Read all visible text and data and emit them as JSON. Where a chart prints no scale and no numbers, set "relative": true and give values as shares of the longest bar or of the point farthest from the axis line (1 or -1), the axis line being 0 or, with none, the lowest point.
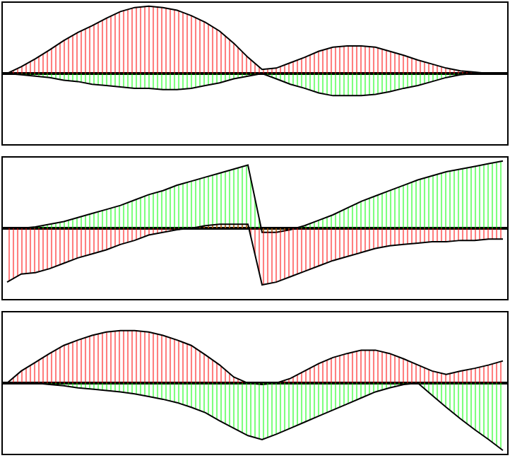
{
  "chart_data": [
    {
      "type": "area",
      "relative": true,
      "categories": [
        null,
        null,
        null,
        null,
        null,
        null,
        null,
        null,
        null,
        null,
        null,
        null,
        null,
        null,
        null,
        null,
        null,
        null,
        null,
        null,
        null,
        null,
        null,
        null,
        null,
        null,
        null,
        null,
        null,
        null,
        null,
        null,
        null,
        null,
        null,
        null
      ],
      "series": [
        {
          "color": "#ff0000",
          "values": [
            0,
            0.1,
            0.22,
            0.35,
            0.49,
            0.61,
            0.71,
            0.82,
            0.92,
            0.98,
            1,
            0.98,
            0.94,
            0.86,
            0.76,
            0.63,
            0.45,
            0.24,
            0.06,
            0.08,
            0.16,
            0.24,
            0.33,
            0.39,
            0.41,
            0.41,
            0.39,
            0.33,
            0.27,
            0.2,
            0.14,
            0.08,
            0.04,
            0.02,
            0,
            0
          ]
        },
        {
          "color": "#00ff00",
          "values": [
            0,
            -0.02,
            -0.04,
            -0.06,
            -0.1,
            -0.12,
            -0.16,
            -0.18,
            -0.2,
            -0.22,
            -0.22,
            -0.24,
            -0.24,
            -0.22,
            -0.18,
            -0.14,
            -0.08,
            -0.04,
            0,
            -0.08,
            -0.16,
            -0.22,
            -0.29,
            -0.33,
            -0.33,
            -0.33,
            -0.31,
            -0.27,
            -0.22,
            -0.18,
            -0.12,
            -0.06,
            -0.02,
            0,
            0,
            0
          ]
        }
      ]
    },
    {
      "type": "area",
      "relative": true,
      "categories": [
        null,
        null,
        null,
        null,
        null,
        null,
        null,
        null,
        null,
        null,
        null,
        null,
        null,
        null,
        null,
        null,
        null,
        null,
        null,
        null,
        null,
        null,
        null,
        null,
        null,
        null,
        null,
        null,
        null,
        null,
        null,
        null,
        null,
        null,
        null,
        null
      ],
      "series": [
        {
          "color": "#00ff00",
          "values": [
            0,
            0,
            0.02,
            0.06,
            0.1,
            0.16,
            0.22,
            0.28,
            0.34,
            0.42,
            0.5,
            0.56,
            0.64,
            0.7,
            0.76,
            0.82,
            0.88,
            0.94,
            -0.06,
            -0.06,
            -0.02,
            0.04,
            0.12,
            0.2,
            0.3,
            0.4,
            0.48,
            0.56,
            0.64,
            0.72,
            0.78,
            0.84,
            0.88,
            0.92,
            0.96,
            1
          ]
        },
        {
          "color": "#ff0000",
          "values": [
            -0.8,
            -0.68,
            -0.66,
            -0.6,
            -0.52,
            -0.44,
            -0.38,
            -0.32,
            -0.24,
            -0.18,
            -0.1,
            -0.06,
            -0.02,
            0,
            0.04,
            0.06,
            0.06,
            0.06,
            -0.84,
            -0.8,
            -0.72,
            -0.64,
            -0.56,
            -0.48,
            -0.42,
            -0.36,
            -0.3,
            -0.26,
            -0.24,
            -0.22,
            -0.2,
            -0.2,
            -0.18,
            -0.18,
            -0.16,
            -0.16
          ]
        }
      ]
    },
    {
      "type": "area",
      "relative": true,
      "categories": [
        null,
        null,
        null,
        null,
        null,
        null,
        null,
        null,
        null,
        null,
        null,
        null,
        null,
        null,
        null,
        null,
        null,
        null,
        null,
        null,
        null,
        null,
        null,
        null,
        null,
        null,
        null,
        null,
        null,
        null,
        null,
        null,
        null,
        null,
        null,
        null
      ],
      "series": [
        {
          "color": "#ff0000",
          "values": [
            0,
            0.18,
            0.31,
            0.44,
            0.56,
            0.64,
            0.71,
            0.76,
            0.78,
            0.78,
            0.76,
            0.71,
            0.64,
            0.56,
            0.42,
            0.27,
            0.09,
            0,
            -0.02,
            0,
            0.07,
            0.18,
            0.29,
            0.38,
            0.44,
            0.49,
            0.49,
            0.44,
            0.36,
            0.27,
            0.18,
            0.13,
            0.18,
            0.22,
            0.27,
            0.33
          ]
        },
        {
          "color": "#00ff00",
          "values": [
            0,
            0,
            0,
            -0.02,
            -0.04,
            -0.07,
            -0.09,
            -0.11,
            -0.13,
            -0.16,
            -0.2,
            -0.24,
            -0.29,
            -0.36,
            -0.44,
            -0.56,
            -0.67,
            -0.78,
            -0.84,
            -0.76,
            -0.67,
            -0.58,
            -0.49,
            -0.4,
            -0.31,
            -0.22,
            -0.13,
            -0.07,
            -0.02,
            0,
            -0.18,
            -0.36,
            -0.53,
            -0.69,
            -0.84,
            -1
          ]
        }
      ]
    }
  ]
}
